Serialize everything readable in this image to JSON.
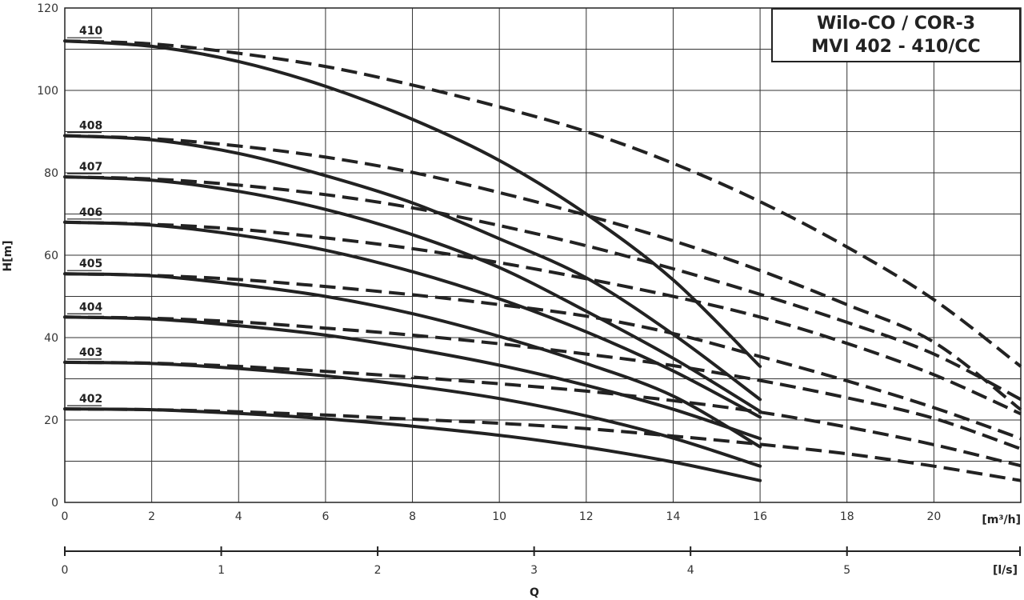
{
  "chart_data": {
    "type": "line",
    "title": [
      "Wilo-CO / COR-3",
      "MVI 402 - 410/CC"
    ],
    "xlabel": "Q",
    "ylabel": "H[m]",
    "x_unit_primary": "[m³/h]",
    "x_unit_secondary": "[l/s]",
    "xlim": [
      0,
      22
    ],
    "ylim": [
      0,
      120
    ],
    "x_ticks": [
      "0",
      "2",
      "4",
      "6",
      "8",
      "10",
      "12",
      "14",
      "16",
      "18",
      "20"
    ],
    "y_ticks": [
      "0",
      "20",
      "40",
      "60",
      "80",
      "100",
      "120"
    ],
    "x2_ticks": [
      "0",
      "1",
      "2",
      "3",
      "4",
      "5"
    ],
    "grid": true,
    "series": [
      {
        "name": "402",
        "solid": {
          "x": [
            0,
            2,
            4,
            6,
            8,
            10,
            12,
            14,
            16
          ],
          "y": [
            22.7,
            22.5,
            21.6,
            20.3,
            18.5,
            16.3,
            13.4,
            9.8,
            5.3
          ]
        },
        "dashed": {
          "x": [
            0,
            2,
            4,
            6,
            8,
            10,
            12,
            14,
            16,
            18,
            20,
            22
          ],
          "y": [
            22.7,
            22.5,
            22.0,
            21.2,
            20.2,
            19.2,
            17.9,
            16.1,
            14.1,
            11.8,
            8.8,
            5.3
          ]
        }
      },
      {
        "name": "403",
        "solid": {
          "x": [
            0,
            2,
            4,
            6,
            8,
            10,
            12,
            14,
            16
          ],
          "y": [
            34,
            33.7,
            32.5,
            30.7,
            28.3,
            25.2,
            21.0,
            15.6,
            8.8
          ]
        },
        "dashed": {
          "x": [
            0,
            2,
            4,
            6,
            8,
            10,
            12,
            14,
            16,
            18,
            20,
            22
          ],
          "y": [
            34,
            33.8,
            33.0,
            31.8,
            30.4,
            28.8,
            27.0,
            24.7,
            21.9,
            18.3,
            14.0,
            8.9
          ]
        }
      },
      {
        "name": "404",
        "solid": {
          "x": [
            0,
            2,
            4,
            6,
            8,
            10,
            12,
            14,
            16
          ],
          "y": [
            45,
            44.5,
            42.9,
            40.6,
            37.3,
            33.3,
            28.4,
            22.6,
            15.5
          ]
        },
        "dashed": {
          "x": [
            0,
            2,
            4,
            6,
            8,
            10,
            12,
            14,
            16,
            18,
            20,
            22
          ],
          "y": [
            45,
            44.7,
            43.8,
            42.3,
            40.6,
            38.5,
            36.0,
            33.2,
            29.6,
            25.4,
            20.4,
            13.0
          ]
        }
      },
      {
        "name": "405",
        "solid": {
          "x": [
            0,
            2,
            4,
            6,
            8,
            10,
            12,
            14,
            16
          ],
          "y": [
            55.5,
            55,
            52.9,
            50.0,
            45.8,
            40.3,
            33.7,
            25.8,
            13.5
          ]
        },
        "dashed": {
          "x": [
            0,
            2,
            4,
            6,
            8,
            10,
            12,
            14,
            16,
            18,
            20,
            22
          ],
          "y": [
            55.5,
            55.1,
            54.1,
            52.4,
            50.4,
            48.0,
            45.2,
            41.0,
            35.4,
            29.5,
            23.0,
            15.5
          ]
        }
      },
      {
        "name": "406",
        "solid": {
          "x": [
            0,
            2,
            4,
            6,
            8,
            10,
            12,
            14,
            16
          ],
          "y": [
            68,
            67.3,
            64.9,
            61.2,
            56.0,
            49.4,
            41.4,
            31.9,
            20.7
          ]
        },
        "dashed": {
          "x": [
            0,
            2,
            4,
            6,
            8,
            10,
            12,
            14,
            16,
            18,
            20,
            22
          ],
          "y": [
            68,
            67.5,
            66.3,
            64.2,
            61.6,
            58.2,
            54.3,
            50.0,
            45.0,
            38.6,
            31.0,
            21.5
          ]
        }
      },
      {
        "name": "407",
        "solid": {
          "x": [
            0,
            2,
            4,
            6,
            8,
            10,
            12,
            14,
            16
          ],
          "y": [
            79,
            78.2,
            75.5,
            71.1,
            65.0,
            57.0,
            46.4,
            35.0,
            22.1
          ]
        },
        "dashed": {
          "x": [
            0,
            2,
            4,
            6,
            8,
            10,
            12,
            14,
            16,
            18,
            20,
            22
          ],
          "y": [
            79,
            78.5,
            77.0,
            74.7,
            71.5,
            67.2,
            62.3,
            56.7,
            50.5,
            43.7,
            36.0,
            25.0
          ]
        }
      },
      {
        "name": "408",
        "solid": {
          "x": [
            0,
            2,
            4,
            6,
            8,
            10,
            12,
            14,
            16
          ],
          "y": [
            89,
            88.0,
            84.7,
            79.3,
            72.7,
            64.0,
            54.5,
            40.8,
            25.0
          ]
        },
        "dashed": {
          "x": [
            0,
            2,
            4,
            6,
            8,
            10,
            12,
            14,
            16,
            18,
            20,
            22
          ],
          "y": [
            89,
            88.3,
            86.5,
            83.8,
            80.1,
            75.2,
            69.7,
            63.5,
            56.3,
            48.0,
            38.9,
            22.5
          ]
        }
      },
      {
        "name": "410",
        "solid": {
          "x": [
            0,
            2,
            4,
            6,
            8,
            10,
            12,
            14,
            16
          ],
          "y": [
            112,
            110.7,
            107.0,
            101.0,
            93.0,
            83.0,
            70.0,
            54.0,
            33.0
          ]
        },
        "dashed": {
          "x": [
            0,
            2,
            4,
            6,
            8,
            10,
            12,
            14,
            16,
            18,
            20,
            22
          ],
          "y": [
            112,
            111.3,
            109.0,
            105.8,
            101.3,
            96.0,
            90.0,
            82.3,
            73.0,
            62.0,
            49.2,
            33.0
          ]
        }
      }
    ]
  }
}
